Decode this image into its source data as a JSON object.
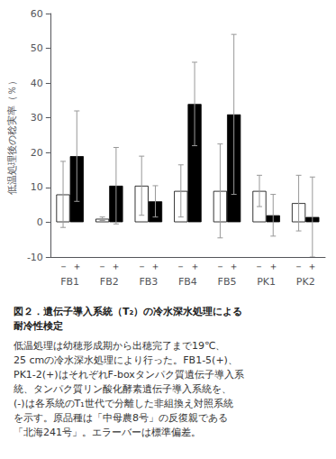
{
  "chart_data": {
    "type": "bar",
    "title": "図２．遺伝子導入系統（T₂）の冷水深水処理による\n耐冷性検定",
    "ylabel": "低温処理後の稔実率（％）",
    "categories": [
      "FB1",
      "FB2",
      "FB3",
      "FB4",
      "FB5",
      "PK1",
      "PK2"
    ],
    "series": [
      {
        "name": "－",
        "color": "#ffffff",
        "values": [
          8.0,
          1.0,
          10.5,
          9.0,
          9.0,
          9.0,
          5.5
        ],
        "errors": [
          9.5,
          0.5,
          8.5,
          7.5,
          13.5,
          4.5,
          8.0
        ]
      },
      {
        "name": "＋",
        "color": "#000000",
        "values": [
          19.0,
          10.5,
          6.0,
          34.0,
          31.0,
          2.0,
          1.5
        ],
        "errors": [
          13.0,
          11.0,
          4.5,
          12.0,
          23.0,
          6.0,
          11.5
        ]
      }
    ],
    "ylim": [
      -10,
      60
    ],
    "yticks": [
      -10,
      0,
      10,
      20,
      30,
      40,
      50,
      60
    ],
    "grid": false,
    "annotations": [
      "低温処理は幼穂形成期から出穂完了まで19℃、\n25 cmの冷水深水処理により行った。FB1-5(+)、\nPK1-2(+)はそれぞれF-boxタンパク質遺伝子導入系\n統、タンパク質リン酸化酵素遺伝子導入系統を、\n(-)は各系統のT₁世代で分離した非組換え対照系統\nを示す。原品種は「中母農8号」の反復親である\n「北海241号」。エラーバーは標準偏差。"
    ]
  }
}
